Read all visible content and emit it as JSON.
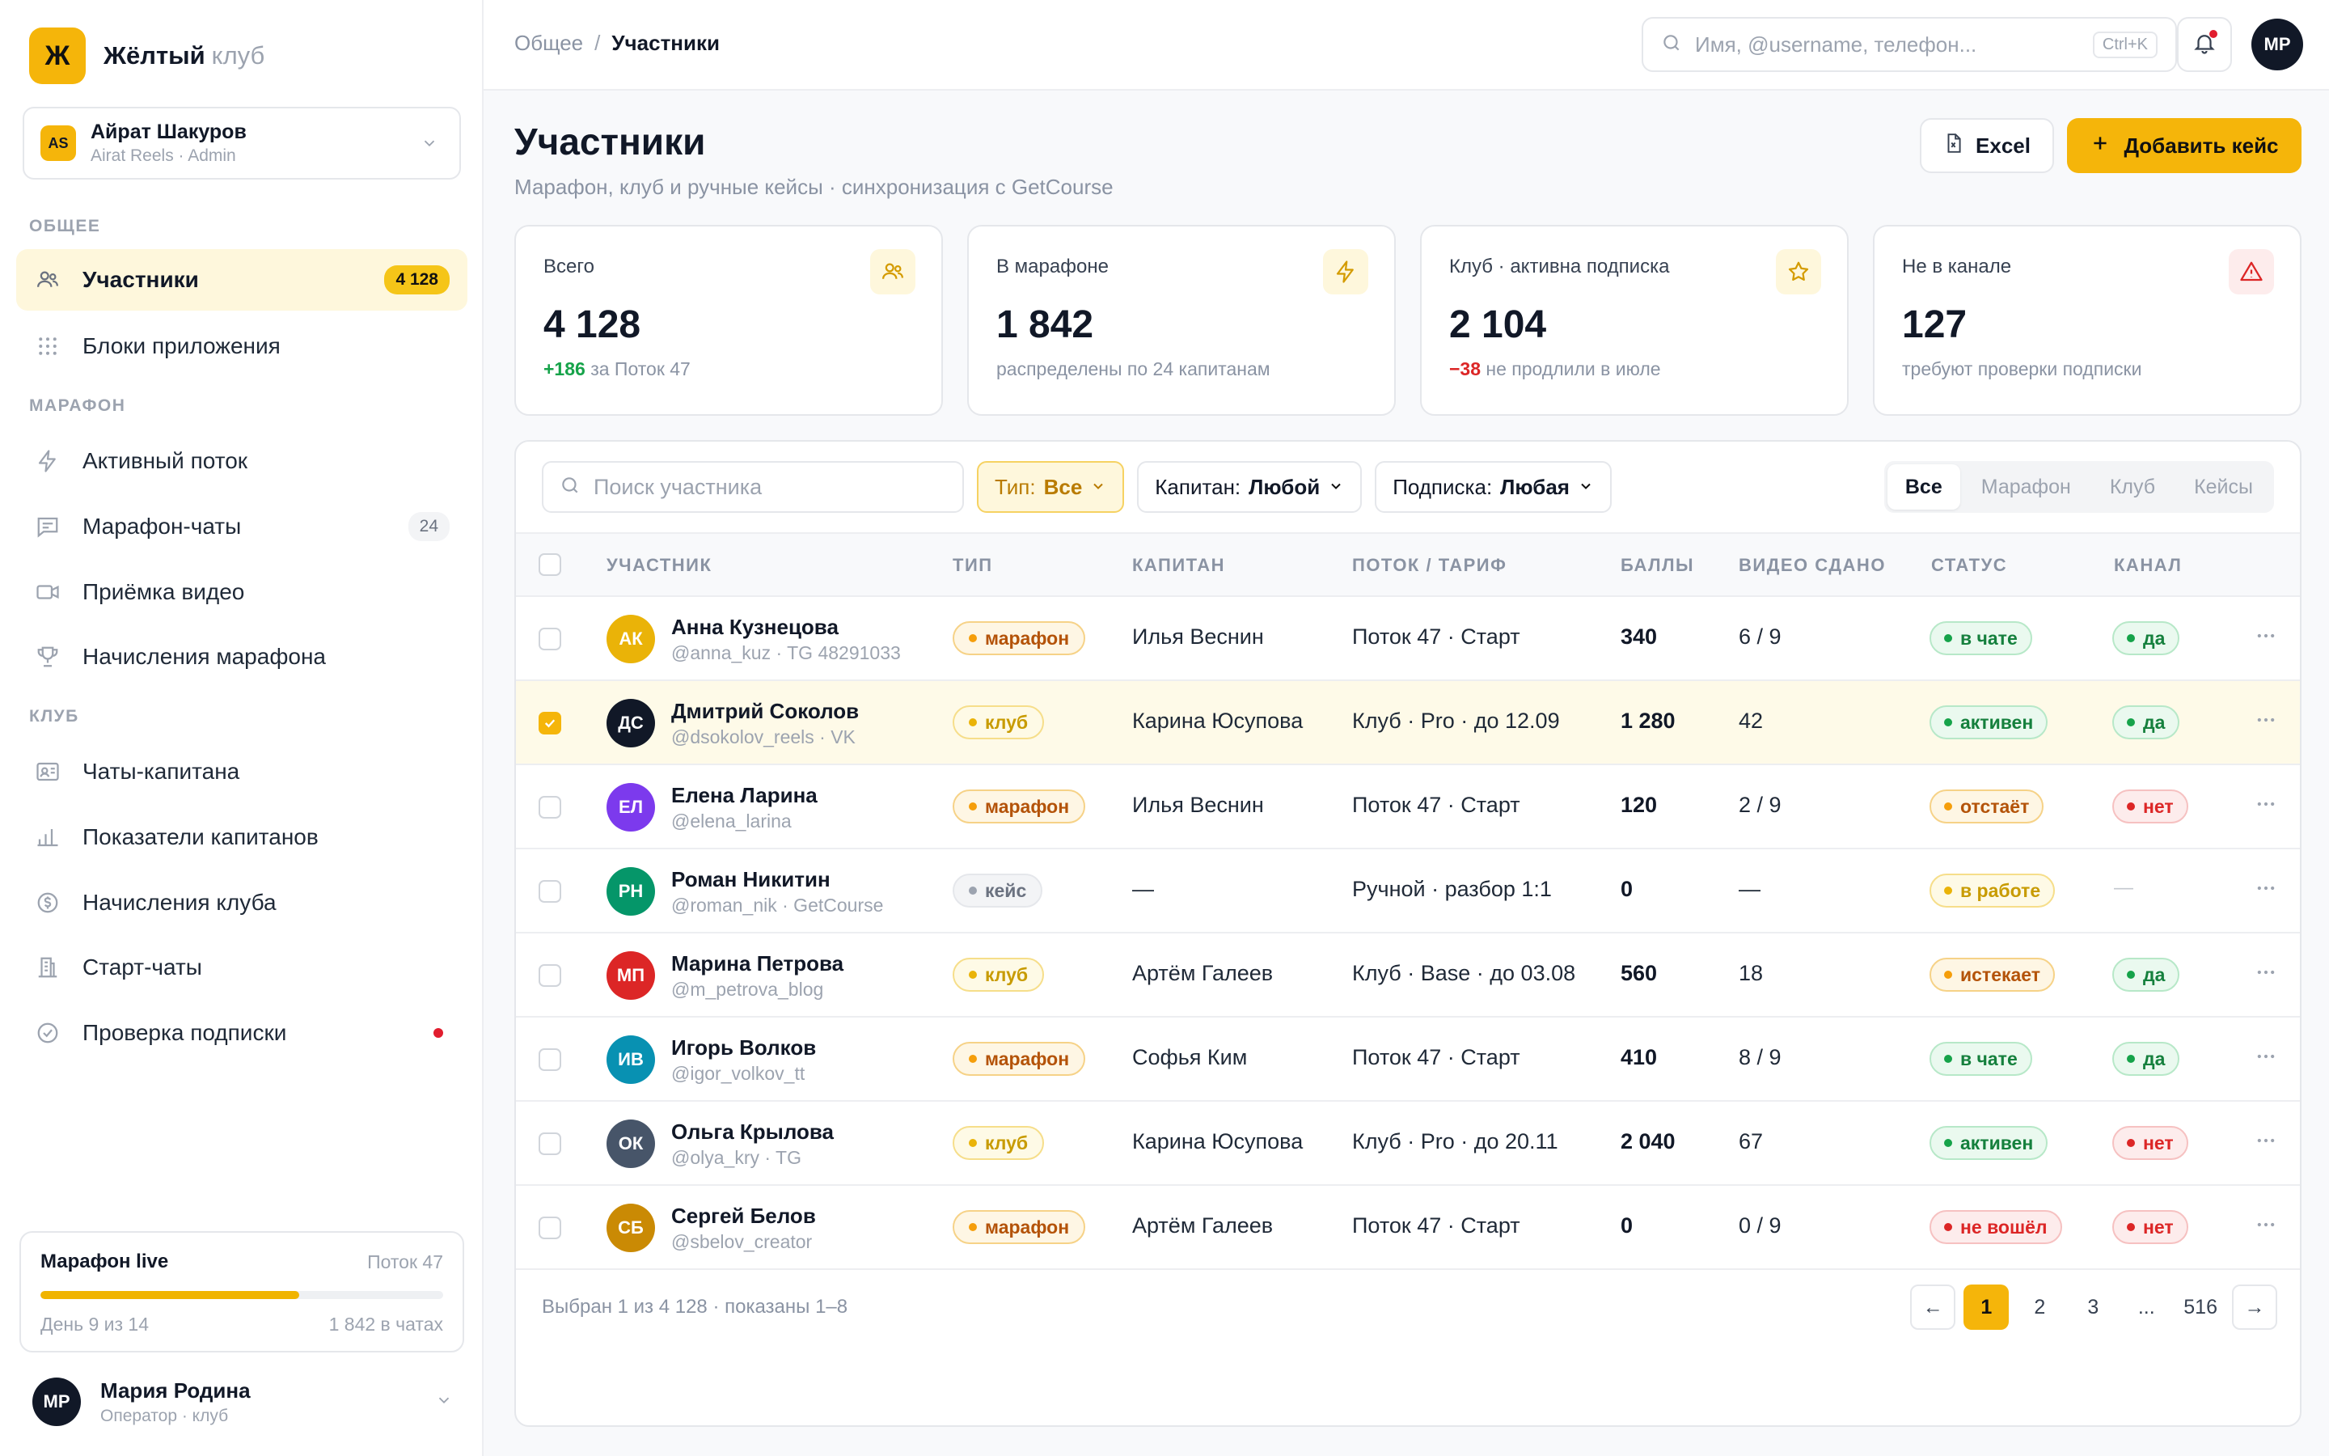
{
  "brand": {
    "logo": "Ж",
    "name": "Жёлтый",
    "sub": "клуб"
  },
  "workspace": {
    "initials": "AS",
    "name": "Айрат Шакуров",
    "role": "Airat Reels · Admin"
  },
  "nav": {
    "section_general": "ОБЩЕЕ",
    "section_marathon": "МАРАФОН",
    "section_club": "КЛУБ",
    "participants": {
      "label": "Участники",
      "badge": "4 128",
      "icon": "users-icon"
    },
    "app_blocks": {
      "label": "Блоки приложения",
      "icon": "grid-icon"
    },
    "active_stream": {
      "label": "Активный поток",
      "icon": "bolt-icon"
    },
    "marathon_chats": {
      "label": "Марафон-чаты",
      "badge": "24",
      "icon": "chat-icon"
    },
    "video_intake": {
      "label": "Приёмка видео",
      "icon": "video-icon"
    },
    "marathon_accruals": {
      "label": "Начисления марафона",
      "icon": "trophy-icon"
    },
    "captain_chats": {
      "label": "Чаты-капитана",
      "icon": "id-card-icon"
    },
    "captain_metrics": {
      "label": "Показатели капитанов",
      "icon": "bar-chart-icon"
    },
    "club_accruals": {
      "label": "Начисления клуба",
      "icon": "coin-icon"
    },
    "start_chats": {
      "label": "Старт-чаты",
      "icon": "building-icon"
    },
    "subscription_check": {
      "label": "Проверка подписки",
      "icon": "check-badge-icon"
    }
  },
  "marathon_live": {
    "title": "Марафон live",
    "stream": "Поток 47",
    "day": "День 9 из 14",
    "in_chats": "1 842 в чатах",
    "progress": 0.643
  },
  "current_user": {
    "initials": "МР",
    "name": "Мария Родина",
    "role": "Оператор · клуб"
  },
  "topbar": {
    "breadcrumb_root": "Общее",
    "breadcrumb_sep": "/",
    "breadcrumb_current": "Участники",
    "search_placeholder": "Имя, @username, телефон...",
    "search_shortcut": "Ctrl+K",
    "avatar": "МР"
  },
  "page": {
    "title": "Участники",
    "subtitle": "Марафон, клуб и ручные кейсы · синхронизация с GetCourse",
    "excel_label": "Excel",
    "add_label": "Добавить кейс"
  },
  "stats": [
    {
      "label": "Всего",
      "value": "4 128",
      "delta": "+186",
      "note": " за Поток 47",
      "icon": "users-icon"
    },
    {
      "label": "В марафоне",
      "value": "1 842",
      "delta": "",
      "note": "распределены по 24 капитанам",
      "icon": "bolt-icon"
    },
    {
      "label": "Клуб · активна подписка",
      "value": "2 104",
      "delta": "−38",
      "note": " не продлили в июле",
      "icon": "star-icon"
    },
    {
      "label": "Не в канале",
      "value": "127",
      "delta": "",
      "note": "требуют проверки подписки",
      "icon": "warning-icon"
    }
  ],
  "filters": {
    "search_placeholder": "Поиск участника",
    "type_label": "Тип:",
    "type_value": "Все",
    "captain_label": "Капитан:",
    "captain_value": "Любой",
    "sub_label": "Подписка:",
    "sub_value": "Любая",
    "seg": [
      "Все",
      "Марафон",
      "Клуб",
      "Кейсы"
    ]
  },
  "columns": {
    "participant": "УЧАСТНИК",
    "type": "ТИП",
    "captain": "КАПИТАН",
    "stream": "ПОТОК / ТАРИФ",
    "points": "БАЛЛЫ",
    "video": "ВИДЕО СДАНО",
    "status": "СТАТУС",
    "channel": "КАНАЛ"
  },
  "rows": [
    {
      "initials": "АК",
      "color": "#EAB308",
      "name": "Анна Кузнецова",
      "handle": "@anna_kuz · TG 48291033",
      "type": "марафон",
      "type_kind": "marathon",
      "captain": "Илья Веснин",
      "stream": "Поток 47 · Старт",
      "points": "340",
      "video": "6 / 9",
      "status": "в чате",
      "status_kind": "green",
      "channel": "да",
      "channel_kind": "green",
      "selected": false
    },
    {
      "initials": "ДС",
      "color": "#111827",
      "name": "Дмитрий Соколов",
      "handle": "@dsokolov_reels · VK",
      "type": "клуб",
      "type_kind": "club",
      "captain": "Карина Юсупова",
      "stream": "Клуб · Pro · до 12.09",
      "points": "1 280",
      "video": "42",
      "status": "активен",
      "status_kind": "green",
      "channel": "да",
      "channel_kind": "green",
      "selected": true
    },
    {
      "initials": "ЕЛ",
      "color": "#7C3AED",
      "name": "Елена Ларина",
      "handle": "@elena_larina",
      "type": "марафон",
      "type_kind": "marathon",
      "captain": "Илья Веснин",
      "stream": "Поток 47 · Старт",
      "points": "120",
      "video": "2 / 9",
      "status": "отстаёт",
      "status_kind": "orange",
      "channel": "нет",
      "channel_kind": "red",
      "selected": false
    },
    {
      "initials": "РН",
      "color": "#059669",
      "name": "Роман Никитин",
      "handle": "@roman_nik · GetCourse",
      "type": "кейс",
      "type_kind": "case",
      "captain": "—",
      "stream": "Ручной · разбор 1:1",
      "points": "0",
      "video": "—",
      "status": "в работе",
      "status_kind": "yellow",
      "channel": "—",
      "channel_kind": "none",
      "selected": false
    },
    {
      "initials": "МП",
      "color": "#DC2626",
      "name": "Марина Петрова",
      "handle": "@m_petrova_blog",
      "type": "клуб",
      "type_kind": "club",
      "captain": "Артём Галеев",
      "stream": "Клуб · Base · до 03.08",
      "points": "560",
      "video": "18",
      "status": "истекает",
      "status_kind": "orange",
      "channel": "да",
      "channel_kind": "green",
      "selected": false
    },
    {
      "initials": "ИВ",
      "color": "#0891B2",
      "name": "Игорь Волков",
      "handle": "@igor_volkov_tt",
      "type": "марафон",
      "type_kind": "marathon",
      "captain": "Софья Ким",
      "stream": "Поток 47 · Старт",
      "points": "410",
      "video": "8 / 9",
      "status": "в чате",
      "status_kind": "green",
      "channel": "да",
      "channel_kind": "green",
      "selected": false
    },
    {
      "initials": "ОК",
      "color": "#475569",
      "name": "Ольга Крылова",
      "handle": "@olya_kry · TG",
      "type": "клуб",
      "type_kind": "club",
      "captain": "Карина Юсупова",
      "stream": "Клуб · Pro · до 20.11",
      "points": "2 040",
      "video": "67",
      "status": "активен",
      "status_kind": "green",
      "channel": "нет",
      "channel_kind": "red",
      "selected": false
    },
    {
      "initials": "СБ",
      "color": "#CA8A04",
      "name": "Сергей Белов",
      "handle": "@sbelov_creator",
      "type": "марафон",
      "type_kind": "marathon",
      "captain": "Артём Галеев",
      "stream": "Поток 47 · Старт",
      "points": "0",
      "video": "0 / 9",
      "status": "не вошёл",
      "status_kind": "red",
      "channel": "нет",
      "channel_kind": "red",
      "selected": false
    }
  ],
  "footer": {
    "text": "Выбран 1 из 4 128 · показаны 1–8",
    "prev": "←",
    "next": "→",
    "pages": [
      "1",
      "2",
      "3",
      "...",
      "516"
    ]
  }
}
